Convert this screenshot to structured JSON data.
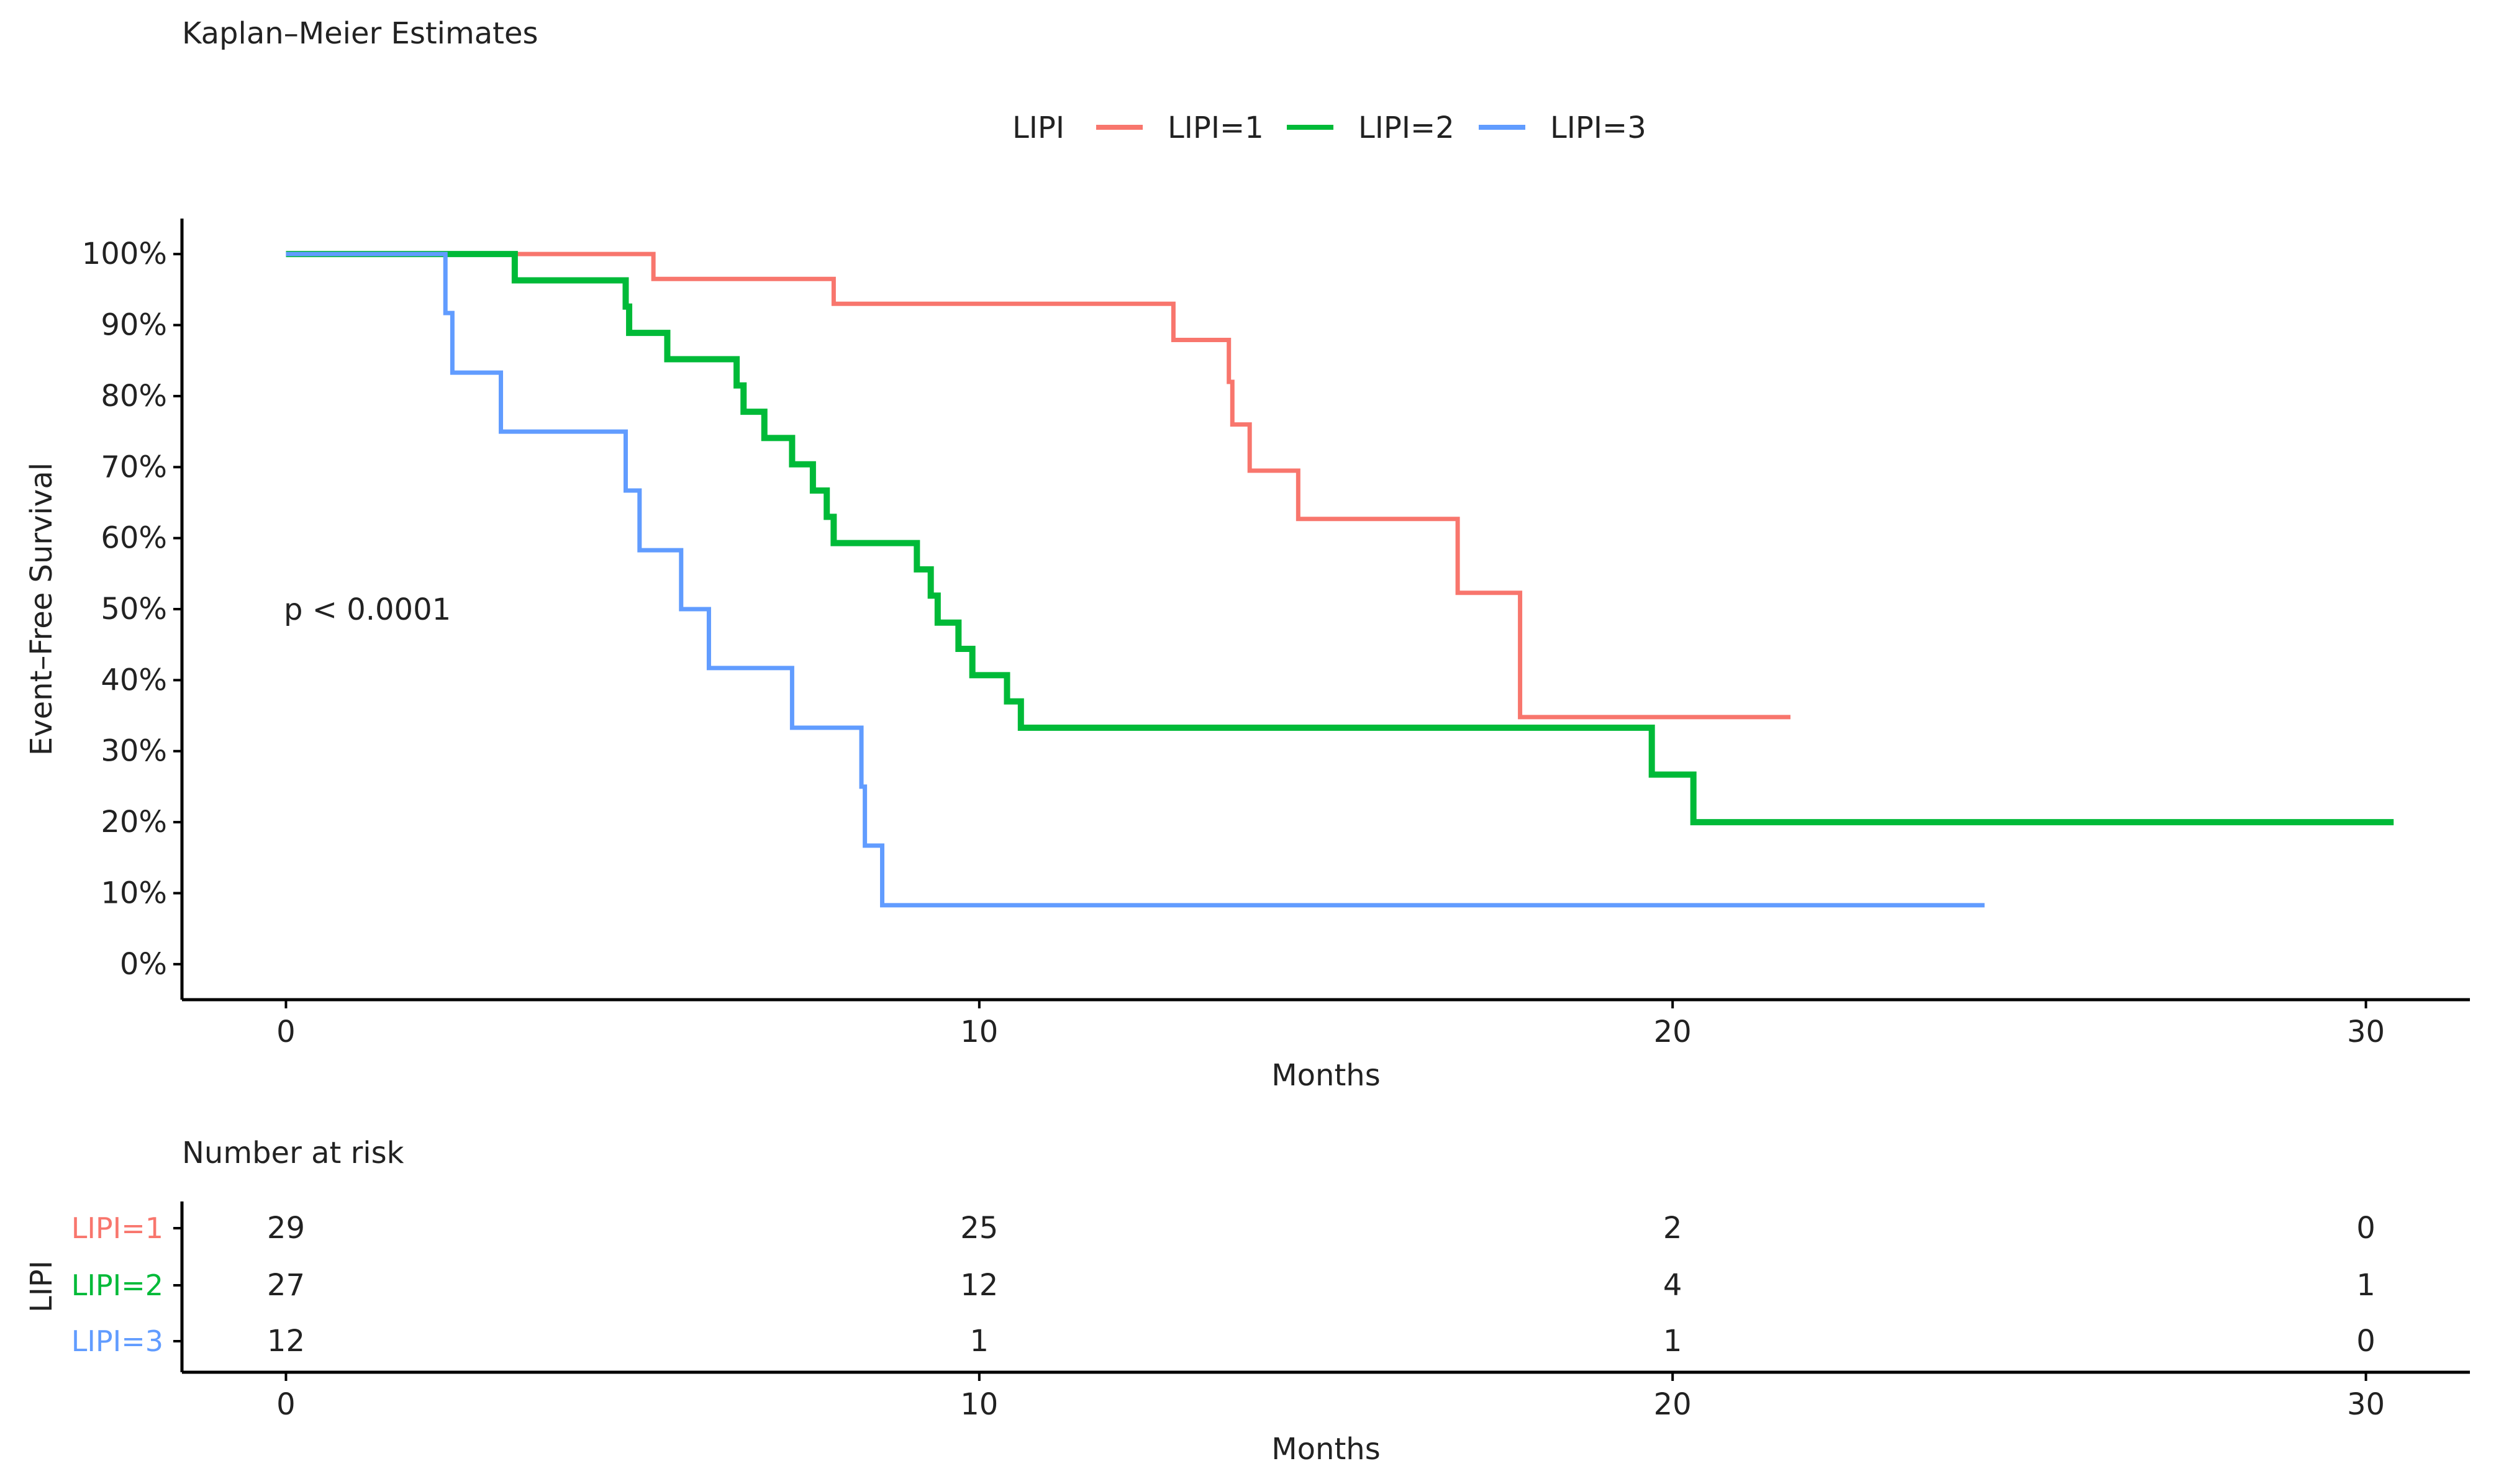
{
  "chart_data": {
    "type": "line",
    "title": "Kaplan–Meier Estimates",
    "xlabel": "Months",
    "ylabel": "Event–Free Survival",
    "xlim": [
      -1.5,
      31.5
    ],
    "ylim": [
      -0.05,
      1.05
    ],
    "x_ticks": [
      "0",
      "10",
      "20",
      "30"
    ],
    "y_ticks": [
      "0%",
      "10%",
      "20%",
      "30%",
      "40%",
      "50%",
      "60%",
      "70%",
      "80%",
      "90%",
      "100%"
    ],
    "legend_title": "LIPI",
    "legend_position": "top",
    "annotation": "p < 0.0001",
    "series": [
      {
        "name": "LIPI=1",
        "color": "#F8766D",
        "steps": [
          [
            0,
            1.0
          ],
          [
            5.3,
            0.965
          ],
          [
            7.9,
            0.93
          ],
          [
            12.8,
            0.879
          ],
          [
            13.6,
            0.82
          ],
          [
            13.65,
            0.76
          ],
          [
            13.9,
            0.695
          ],
          [
            14.6,
            0.627
          ],
          [
            16.9,
            0.523
          ],
          [
            17.8,
            0.348
          ],
          [
            21.7,
            0.348
          ]
        ]
      },
      {
        "name": "LIPI=2",
        "color": "#00BA38",
        "steps": [
          [
            0,
            1.0
          ],
          [
            3.3,
            0.963
          ],
          [
            4.9,
            0.926
          ],
          [
            4.95,
            0.889
          ],
          [
            5.5,
            0.852
          ],
          [
            6.5,
            0.815
          ],
          [
            6.6,
            0.778
          ],
          [
            6.9,
            0.741
          ],
          [
            7.3,
            0.704
          ],
          [
            7.6,
            0.667
          ],
          [
            7.8,
            0.63
          ],
          [
            7.9,
            0.593
          ],
          [
            9.1,
            0.556
          ],
          [
            9.3,
            0.519
          ],
          [
            9.4,
            0.481
          ],
          [
            9.7,
            0.444
          ],
          [
            9.9,
            0.407
          ],
          [
            10.4,
            0.37
          ],
          [
            10.6,
            0.333
          ],
          [
            19.7,
            0.267
          ],
          [
            20.3,
            0.2
          ],
          [
            30.4,
            0.2
          ]
        ]
      },
      {
        "name": "LIPI=3",
        "color": "#619CFF",
        "steps": [
          [
            0,
            1.0
          ],
          [
            2.3,
            0.917
          ],
          [
            2.4,
            0.833
          ],
          [
            3.1,
            0.75
          ],
          [
            4.9,
            0.667
          ],
          [
            5.1,
            0.583
          ],
          [
            5.7,
            0.5
          ],
          [
            6.1,
            0.417
          ],
          [
            7.3,
            0.333
          ],
          [
            8.3,
            0.25
          ],
          [
            8.35,
            0.167
          ],
          [
            8.6,
            0.083
          ],
          [
            24.5,
            0.083
          ]
        ]
      }
    ]
  },
  "risk_table": {
    "title": "Number at risk",
    "ylabel": "LIPI",
    "xlabel": "Months",
    "times": [
      0,
      10,
      20,
      30
    ],
    "rows": [
      {
        "label": "LIPI=1",
        "color": "#F8766D",
        "counts": [
          "29",
          "25",
          "2",
          "0"
        ]
      },
      {
        "label": "LIPI=2",
        "color": "#00BA38",
        "counts": [
          "27",
          "12",
          "4",
          "1"
        ]
      },
      {
        "label": "LIPI=3",
        "color": "#619CFF",
        "counts": [
          "12",
          "1",
          "1",
          "0"
        ]
      }
    ]
  }
}
